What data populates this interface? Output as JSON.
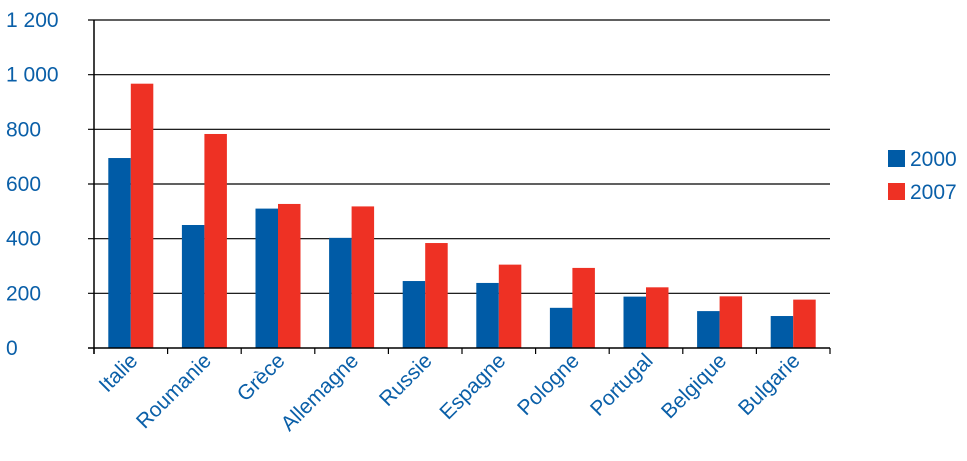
{
  "chart_data": {
    "type": "bar",
    "categories": [
      "Italie",
      "Roumanie",
      "Grèce",
      "Allemagne",
      "Russie",
      "Espagne",
      "Pologne",
      "Portugal",
      "Belgique",
      "Bulgarie"
    ],
    "series": [
      {
        "name": "2000",
        "color": "#005ba6",
        "values": [
          695,
          450,
          510,
          403,
          245,
          238,
          147,
          188,
          135,
          117
        ]
      },
      {
        "name": "2007",
        "color": "#ee3124",
        "values": [
          967,
          783,
          527,
          518,
          384,
          305,
          293,
          222,
          189,
          177
        ]
      }
    ],
    "yticks": [
      0,
      200,
      400,
      600,
      800,
      1000,
      1200
    ],
    "ytick_labels": [
      "0",
      "200",
      "400",
      "600",
      "800",
      "1 000",
      "1 200"
    ],
    "ylim": [
      0,
      1200
    ],
    "grid": true,
    "legend_position": "right",
    "title": "",
    "xlabel": "",
    "ylabel": ""
  }
}
